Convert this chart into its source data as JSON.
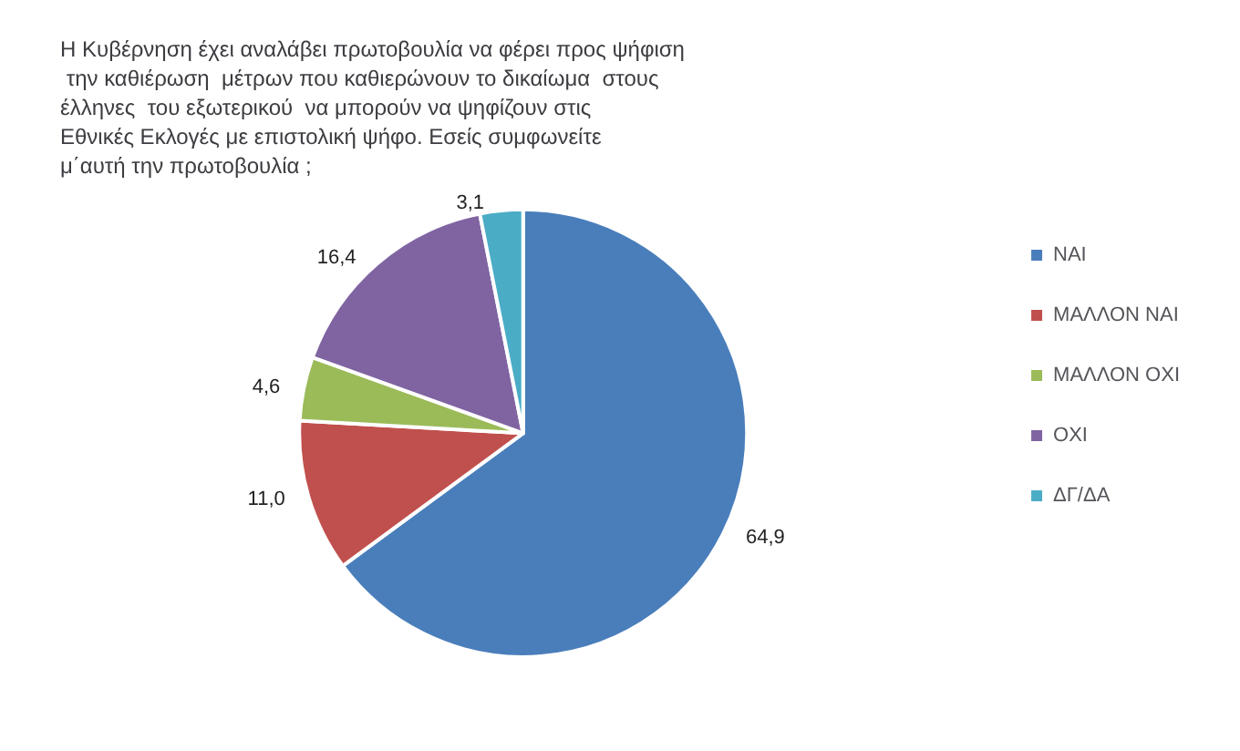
{
  "chart_data": {
    "type": "pie",
    "title": "Η Κυβέρνηση έχει αναλάβει πρωτοβουλία να φέρει προς ψήφιση την καθιέρωση  μέτρων που καθιερώνουν το δικαίωμα  στους  έλληνες  του εξωτερικού  να μπορούν να ψηφίζουν στις Εθνικές Εκλογές με επιστολική ψήφο. Εσείς συμφωνείτε μ΄αυτή την πρωτοβουλία ;",
    "categories": [
      "ΝΑΙ",
      "ΜΑΛΛΟΝ ΝΑΙ",
      "ΜΑΛΛΟΝ ΟΧΙ",
      "ΟΧΙ",
      "ΔΓ/ΔΑ"
    ],
    "values": [
      64.9,
      11.0,
      4.6,
      16.4,
      3.1
    ],
    "value_labels": [
      "64,9",
      "11,0",
      "4,6",
      "16,4",
      "3,1"
    ],
    "colors": [
      "#4a7ebb",
      "#c0504d",
      "#9bbb59",
      "#8064a2",
      "#4bacc6"
    ],
    "legend": "right"
  }
}
